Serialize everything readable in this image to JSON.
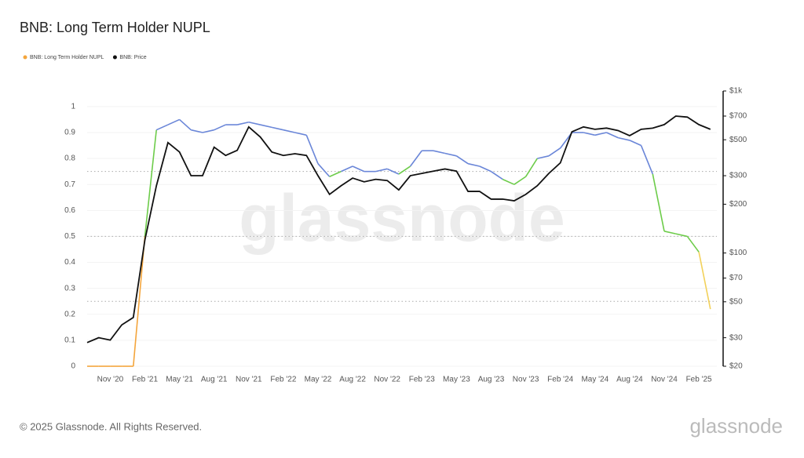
{
  "chart_data": {
    "type": "line",
    "title": "BNB: Long Term Holder NUPL",
    "watermark": "glassnode",
    "footer": "© 2025 Glassnode. All Rights Reserved.",
    "logo": "glassnode",
    "x": [
      "Sep '20",
      "Oct '20",
      "Nov '20",
      "Dec '20",
      "Jan '21",
      "Feb '21",
      "Mar '21",
      "Apr '21",
      "May '21",
      "Jun '21",
      "Jul '21",
      "Aug '21",
      "Sep '21",
      "Oct '21",
      "Nov '21",
      "Dec '21",
      "Jan '22",
      "Feb '22",
      "Mar '22",
      "Apr '22",
      "May '22",
      "Jun '22",
      "Jul '22",
      "Aug '22",
      "Sep '22",
      "Oct '22",
      "Nov '22",
      "Dec '22",
      "Jan '23",
      "Feb '23",
      "Mar '23",
      "Apr '23",
      "May '23",
      "Jun '23",
      "Jul '23",
      "Aug '23",
      "Sep '23",
      "Oct '23",
      "Nov '23",
      "Dec '23",
      "Jan '24",
      "Feb '24",
      "Mar '24",
      "Apr '24",
      "May '24",
      "Jun '24",
      "Jul '24",
      "Aug '24",
      "Sep '24",
      "Oct '24",
      "Nov '24",
      "Dec '24",
      "Jan '25",
      "Feb '25",
      "Mar '25"
    ],
    "xticks": [
      {
        "value": 2,
        "label": "Nov '20"
      },
      {
        "value": 5,
        "label": "Feb '21"
      },
      {
        "value": 8,
        "label": "May '21"
      },
      {
        "value": 11,
        "label": "Aug '21"
      },
      {
        "value": 14,
        "label": "Nov '21"
      },
      {
        "value": 17,
        "label": "Feb '22"
      },
      {
        "value": 20,
        "label": "May '22"
      },
      {
        "value": 23,
        "label": "Aug '22"
      },
      {
        "value": 26,
        "label": "Nov '22"
      },
      {
        "value": 29,
        "label": "Feb '23"
      },
      {
        "value": 32,
        "label": "May '23"
      },
      {
        "value": 35,
        "label": "Aug '23"
      },
      {
        "value": 38,
        "label": "Nov '23"
      },
      {
        "value": 41,
        "label": "Feb '24"
      },
      {
        "value": 44,
        "label": "May '24"
      },
      {
        "value": 47,
        "label": "Aug '24"
      },
      {
        "value": 50,
        "label": "Nov '24"
      },
      {
        "value": 53,
        "label": "Feb '25"
      }
    ],
    "series": [
      {
        "name": "BNB: Long Term Holder NUPL",
        "color": "#f4a53c",
        "values": [
          0,
          0,
          0,
          0,
          0,
          0.5,
          0.91,
          0.93,
          0.95,
          0.91,
          0.9,
          0.91,
          0.93,
          0.93,
          0.94,
          0.93,
          0.92,
          0.91,
          0.9,
          0.89,
          0.78,
          0.73,
          0.75,
          0.77,
          0.75,
          0.75,
          0.76,
          0.74,
          0.77,
          0.83,
          0.83,
          0.82,
          0.81,
          0.78,
          0.77,
          0.75,
          0.72,
          0.7,
          0.73,
          0.8,
          0.81,
          0.84,
          0.9,
          0.9,
          0.89,
          0.9,
          0.88,
          0.87,
          0.85,
          0.74,
          0.52,
          0.51,
          0.5,
          0.44,
          0.22
        ]
      },
      {
        "name": "BNB: Price",
        "color": "#111111",
        "axis": "y2",
        "values": [
          28,
          30,
          29,
          36,
          40,
          120,
          260,
          480,
          420,
          300,
          300,
          450,
          400,
          430,
          600,
          520,
          420,
          400,
          410,
          400,
          300,
          230,
          260,
          290,
          275,
          285,
          280,
          245,
          300,
          310,
          320,
          330,
          320,
          240,
          240,
          215,
          215,
          210,
          230,
          260,
          310,
          360,
          560,
          600,
          580,
          590,
          570,
          530,
          580,
          590,
          620,
          700,
          690,
          620,
          580
        ]
      }
    ],
    "zones": [
      {
        "min": 0,
        "color": "#f4a53c"
      },
      {
        "min": 0.25,
        "color": "#f2d15a"
      },
      {
        "min": 0.5,
        "color": "#6dcc4a"
      },
      {
        "min": 0.75,
        "color": "#6a86d8"
      }
    ],
    "ylim": [
      0,
      1.06
    ],
    "yticks": [
      0,
      0.1,
      0.2,
      0.3,
      0.4,
      0.5,
      0.6,
      0.7,
      0.8,
      0.9,
      1
    ],
    "y2lim": [
      20,
      1000
    ],
    "y2scale": "log",
    "y2ticks": [
      {
        "value": 20,
        "label": "$20"
      },
      {
        "value": 30,
        "label": "$30"
      },
      {
        "value": 50,
        "label": "$50"
      },
      {
        "value": 70,
        "label": "$70"
      },
      {
        "value": 100,
        "label": "$100"
      },
      {
        "value": 200,
        "label": "$200"
      },
      {
        "value": 300,
        "label": "$300"
      },
      {
        "value": 500,
        "label": "$500"
      },
      {
        "value": 700,
        "label": "$700"
      },
      {
        "value": 1000,
        "label": "$1k"
      }
    ],
    "grid": true
  }
}
